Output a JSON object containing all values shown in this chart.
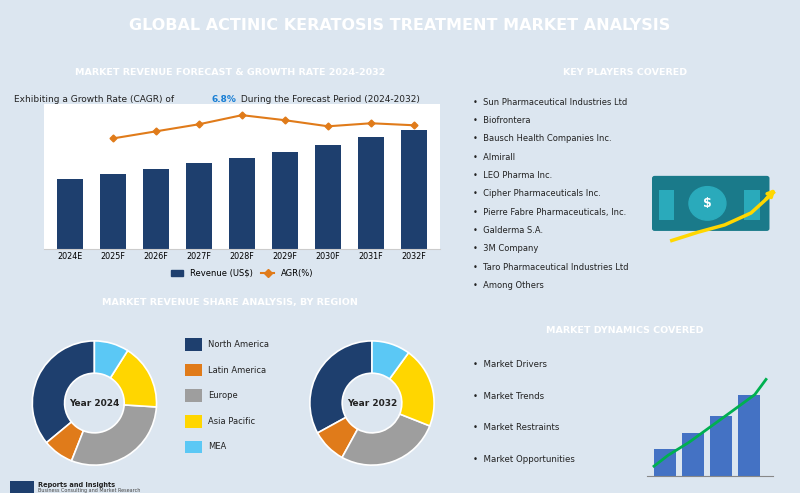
{
  "title": "GLOBAL ACTINIC KERATOSIS TREATMENT MARKET ANALYSIS",
  "title_bg": "#2d4a6b",
  "title_color": "#ffffff",
  "bar_section_title": "MARKET REVENUE FORECAST & GROWTH RATE 2024-2032",
  "bar_subtitle_prefix": "Exhibiting a Growth Rate (CAGR) of ",
  "bar_subtitle_cagr": "6.8%",
  "bar_subtitle_suffix": " During the Forecast Period (2024-2032)",
  "bar_subtitle_cagr_color": "#1a7fd4",
  "bar_subtitle_color": "#222222",
  "years": [
    "2024E",
    "2025F",
    "2026F",
    "2027F",
    "2028F",
    "2029F",
    "2030F",
    "2031F",
    "2032F"
  ],
  "revenue": [
    1.0,
    1.07,
    1.14,
    1.22,
    1.3,
    1.38,
    1.48,
    1.6,
    1.7
  ],
  "agr_x": [
    1,
    2,
    3,
    4,
    5,
    6,
    7,
    8
  ],
  "agr_y": [
    6.2,
    6.55,
    6.9,
    7.35,
    7.1,
    6.8,
    6.95,
    6.85
  ],
  "bar_color": "#1e3f6e",
  "line_color": "#e07b1a",
  "line_marker": "D",
  "legend_revenue": "Revenue (US$)",
  "legend_agr": "AGR(%)",
  "pie_section_title": "MARKET REVENUE SHARE ANALYSIS, BY REGION",
  "pie_labels": [
    "North America",
    "Latin America",
    "Europe",
    "Asia Pacific",
    "MEA"
  ],
  "pie_colors": [
    "#1e3f6e",
    "#e07b1a",
    "#9e9e9e",
    "#ffd600",
    "#5bc8f5"
  ],
  "pie_2024": [
    36,
    8,
    30,
    17,
    9
  ],
  "pie_2032": [
    33,
    9,
    27,
    21,
    10
  ],
  "pie_year_2024": "Year 2024",
  "pie_year_2032": "Year 2032",
  "key_players_title": "KEY PLAYERS COVERED",
  "key_players": [
    "Sun Pharmaceutical Industries Ltd",
    "Biofrontera",
    "Bausch Health Companies Inc.",
    "Almirall",
    "LEO Pharma Inc.",
    "Cipher Pharmaceuticals Inc.",
    "Pierre Fabre Pharmaceuticals, Inc.",
    "Galderma S.A.",
    "3M Company",
    "Taro Pharmaceutical Industries Ltd",
    "Among Others"
  ],
  "dynamics_title": "MARKET DYNAMICS COVERED",
  "dynamics": [
    "Market Drivers",
    "Market Trends",
    "Market Restraints",
    "Market Opportunities"
  ],
  "section_header_bg": "#1e4070",
  "section_header_color": "#ffffff",
  "panel_bg": "#ffffff",
  "outer_bg": "#dce6f0",
  "logo_text": "Reports and Insights",
  "logo_sub": "Business Consulting and Market Research"
}
